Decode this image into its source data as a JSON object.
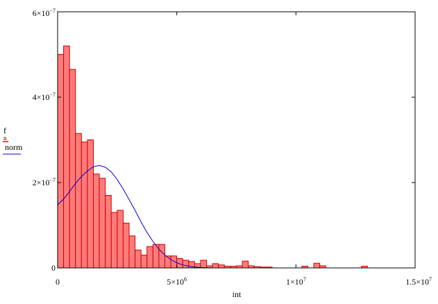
{
  "chart_data": {
    "type": "bar",
    "title": "",
    "xlabel": "int",
    "ylabel": "",
    "xlim": [
      0,
      15000000
    ],
    "ylim": [
      0,
      6e-07
    ],
    "grid": false,
    "bin_width": 250000,
    "x_tick_labels": [
      {
        "value": 0,
        "mant": "0",
        "exp": ""
      },
      {
        "value": 5000000,
        "mant": "5×10",
        "exp": "6"
      },
      {
        "value": 10000000,
        "mant": "1×10",
        "exp": "7"
      },
      {
        "value": 15000000,
        "mant": "1.5×10",
        "exp": "7"
      }
    ],
    "y_tick_labels": [
      {
        "value": 0,
        "mant": "0",
        "exp": ""
      },
      {
        "value": 2e-07,
        "mant": "2×10",
        "exp": "−7"
      },
      {
        "value": 4e-07,
        "mant": "4×10",
        "exp": "−7"
      },
      {
        "value": 6e-07,
        "mant": "6×10",
        "exp": "−7"
      }
    ],
    "legend": [
      {
        "label": "f",
        "sub": "n",
        "color": "#ff0000",
        "style": "bars"
      },
      {
        "label": "norm",
        "sub": "",
        "color": "#0000cc",
        "style": "line"
      }
    ],
    "series": [
      {
        "name": "f",
        "style": "histogram",
        "fill": "#ff7b7b",
        "stroke": "#cc0000",
        "bin_starts": [
          0,
          250000,
          500000,
          750000,
          1000000,
          1250000,
          1500000,
          1750000,
          2000000,
          2250000,
          2500000,
          2750000,
          3000000,
          3250000,
          3500000,
          3750000,
          4000000,
          4250000,
          4500000,
          4750000,
          5000000,
          5250000,
          5500000,
          5750000,
          6000000,
          6250000,
          6500000,
          6750000,
          7000000,
          7250000,
          7500000,
          7750000,
          8000000,
          8250000,
          8500000,
          8750000,
          9000000,
          10250000,
          10750000,
          11000000,
          12750000
        ],
        "values": [
          5e-07,
          5.2e-07,
          4.65e-07,
          3.15e-07,
          2.95e-07,
          3e-07,
          2.2e-07,
          2.1e-07,
          1.7e-07,
          1.3e-07,
          1.35e-07,
          1.05e-07,
          7.5e-08,
          4.2e-08,
          3e-08,
          5e-08,
          5.5e-08,
          5.5e-08,
          2.8e-08,
          2.8e-08,
          2.2e-08,
          1.8e-08,
          1.5e-08,
          1e-08,
          1.8e-08,
          5e-09,
          1e-08,
          7e-09,
          4e-09,
          4e-09,
          5e-09,
          1.6e-08,
          5e-09,
          3e-09,
          2e-09,
          2e-09,
          0,
          4e-09,
          1.1e-08,
          5e-09,
          4e-09
        ]
      },
      {
        "name": "norm",
        "style": "line",
        "color": "#0000cc",
        "x": [
          0,
          250000,
          500000,
          750000,
          1000000,
          1250000,
          1500000,
          1750000,
          2000000,
          2250000,
          2500000,
          2750000,
          3000000,
          3250000,
          3500000,
          3750000,
          4000000,
          4250000,
          4500000,
          4750000,
          5000000,
          5250000,
          5500000,
          5750000,
          6000000,
          6500000,
          7000000,
          7500000,
          8000000,
          9000000,
          10000000,
          11000000,
          12000000,
          13000000,
          14000000,
          15000000
        ],
        "y": [
          1.48e-07,
          1.61e-07,
          1.79e-07,
          1.98e-07,
          2.14e-07,
          2.27e-07,
          2.37e-07,
          2.4e-07,
          2.36e-07,
          2.25e-07,
          2.07e-07,
          1.85e-07,
          1.6e-07,
          1.35e-07,
          1.08e-07,
          8.3e-08,
          6.2e-08,
          4.4e-08,
          3e-08,
          1.95e-08,
          1.2e-08,
          7e-09,
          4e-09,
          2e-09,
          1e-09,
          0,
          0,
          0,
          0,
          0,
          0,
          0,
          0,
          0,
          0,
          0
        ]
      }
    ]
  }
}
